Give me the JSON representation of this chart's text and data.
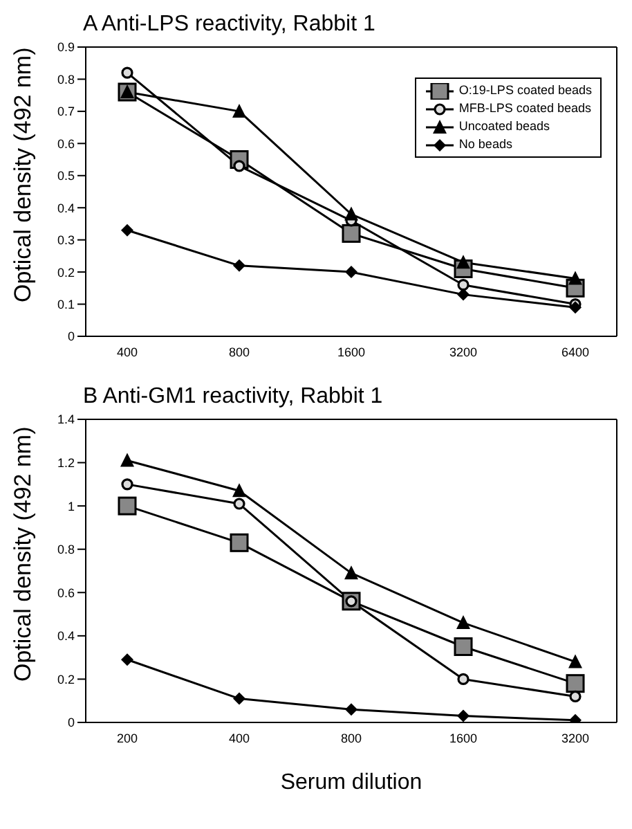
{
  "chart_data": [
    {
      "type": "line",
      "title": "A Anti-LPS reactivity, Rabbit 1",
      "ylabel": "Optical density (492 nm)",
      "categories": [
        "400",
        "800",
        "1600",
        "3200",
        "6400"
      ],
      "ylim": [
        0,
        0.9
      ],
      "yticks": [
        0,
        0.1,
        0.2,
        0.3,
        0.4,
        0.5,
        0.6,
        0.7,
        0.8,
        0.9
      ],
      "grid": false,
      "legend": "top right",
      "series": [
        {
          "name": "O:19-LPS coated beads",
          "color": "#000000",
          "marker": "square",
          "values": [
            0.76,
            0.55,
            0.32,
            0.21,
            0.15
          ]
        },
        {
          "name": "MFB-LPS coated beads",
          "color": "#000000",
          "marker": "circle",
          "values": [
            0.82,
            0.53,
            0.36,
            0.16,
            0.1
          ]
        },
        {
          "name": "Uncoated beads",
          "color": "#000000",
          "marker": "triangle",
          "values": [
            0.76,
            0.7,
            0.38,
            0.23,
            0.18
          ]
        },
        {
          "name": "No beads",
          "color": "#000000",
          "marker": "diamond",
          "values": [
            0.33,
            0.22,
            0.2,
            0.13,
            0.09
          ]
        }
      ]
    },
    {
      "type": "line",
      "title": "B Anti-GM1 reactivity, Rabbit 1",
      "ylabel": "Optical density (492 nm)",
      "xlabel": "Serum dilution",
      "categories": [
        "200",
        "400",
        "800",
        "1600",
        "3200"
      ],
      "ylim": [
        0,
        1.4
      ],
      "yticks": [
        0,
        0.2,
        0.4,
        0.6,
        0.8,
        1,
        1.2,
        1.4
      ],
      "grid": false,
      "legend": false,
      "series": [
        {
          "color": "#000000",
          "marker": "square",
          "values": [
            1.0,
            0.83,
            0.56,
            0.35,
            0.18
          ]
        },
        {
          "color": "#000000",
          "marker": "circle",
          "values": [
            1.1,
            1.01,
            0.56,
            0.2,
            0.12
          ]
        },
        {
          "color": "#000000",
          "marker": "triangle",
          "values": [
            1.21,
            1.07,
            0.69,
            0.46,
            0.28
          ]
        },
        {
          "color": "#000000",
          "marker": "diamond",
          "values": [
            0.29,
            0.11,
            0.06,
            0.03,
            0.01
          ]
        }
      ]
    }
  ]
}
